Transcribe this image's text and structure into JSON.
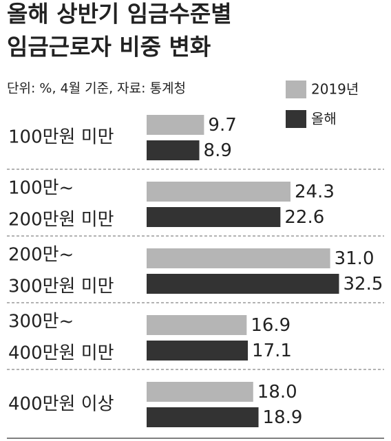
{
  "chart_data": {
    "type": "bar",
    "orientation": "horizontal",
    "title": [
      "올해 상반기 임금수준별",
      "임금근로자 비중 변화"
    ],
    "subtitle": "단위: %, 4월 기준, 자료: 통계청",
    "categories": [
      [
        "100만원 미만"
      ],
      [
        "100만~",
        "200만원 미만"
      ],
      [
        "200만~",
        "300만원 미만"
      ],
      [
        "300만~",
        "400만원 미만"
      ],
      [
        "400만원 이상"
      ]
    ],
    "series": [
      {
        "name": "2019년",
        "color": "#b5b5b5",
        "values": [
          9.7,
          24.3,
          31.0,
          16.9,
          18.0
        ],
        "value_labels": [
          "9.7",
          "24.3",
          "31.0",
          "16.9",
          "18.0"
        ]
      },
      {
        "name": "올해",
        "color": "#333333",
        "values": [
          8.9,
          22.6,
          32.5,
          17.1,
          18.9
        ],
        "value_labels": [
          "8.9",
          "22.6",
          "32.5",
          "17.1",
          "18.9"
        ]
      }
    ]
  }
}
